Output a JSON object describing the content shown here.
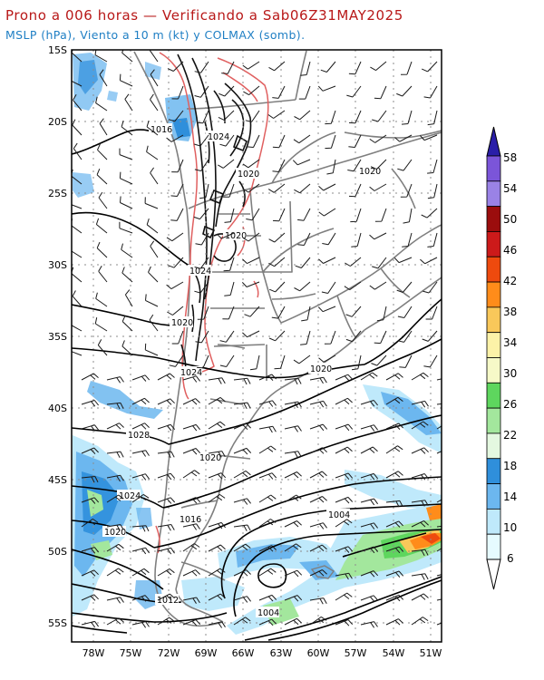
{
  "header": {
    "title": "Prono a 006 horas — Verificando a Sab06Z31MAY2025",
    "subtitle": "MSLP (hPa), Viento a 10 m (kt) y COLMAX (somb)."
  },
  "axes": {
    "lat_labels": [
      "15S",
      "20S",
      "25S",
      "30S",
      "35S",
      "40S",
      "45S",
      "50S",
      "55S"
    ],
    "lon_labels": [
      "78W",
      "75W",
      "72W",
      "69W",
      "66W",
      "63W",
      "60W",
      "57W",
      "54W",
      "51W"
    ]
  },
  "isobar_labels": [
    "1016",
    "1024",
    "1020",
    "1020",
    "1020",
    "1024",
    "1020",
    "1024",
    "1020",
    "1028",
    "1020",
    "1024",
    "1016",
    "1020",
    "1004",
    "1012",
    "1004"
  ],
  "colorbar": {
    "values": [
      "58",
      "54",
      "50",
      "46",
      "42",
      "38",
      "34",
      "30",
      "26",
      "22",
      "18",
      "14",
      "10",
      "6"
    ],
    "colors": [
      "#7b55d9",
      "#9a82e6",
      "#9b0d0d",
      "#cc1a1a",
      "#ee4a0e",
      "#ff8c1a",
      "#f9c85a",
      "#fcf2a8",
      "#f6f9c8",
      "#5ed65e",
      "#a3e79d",
      "#e4f8e0",
      "#2f8fdb",
      "#6cb7ef",
      "#bfe9fb",
      "#e6fbff"
    ],
    "top_color": "#2a1ea8"
  }
}
